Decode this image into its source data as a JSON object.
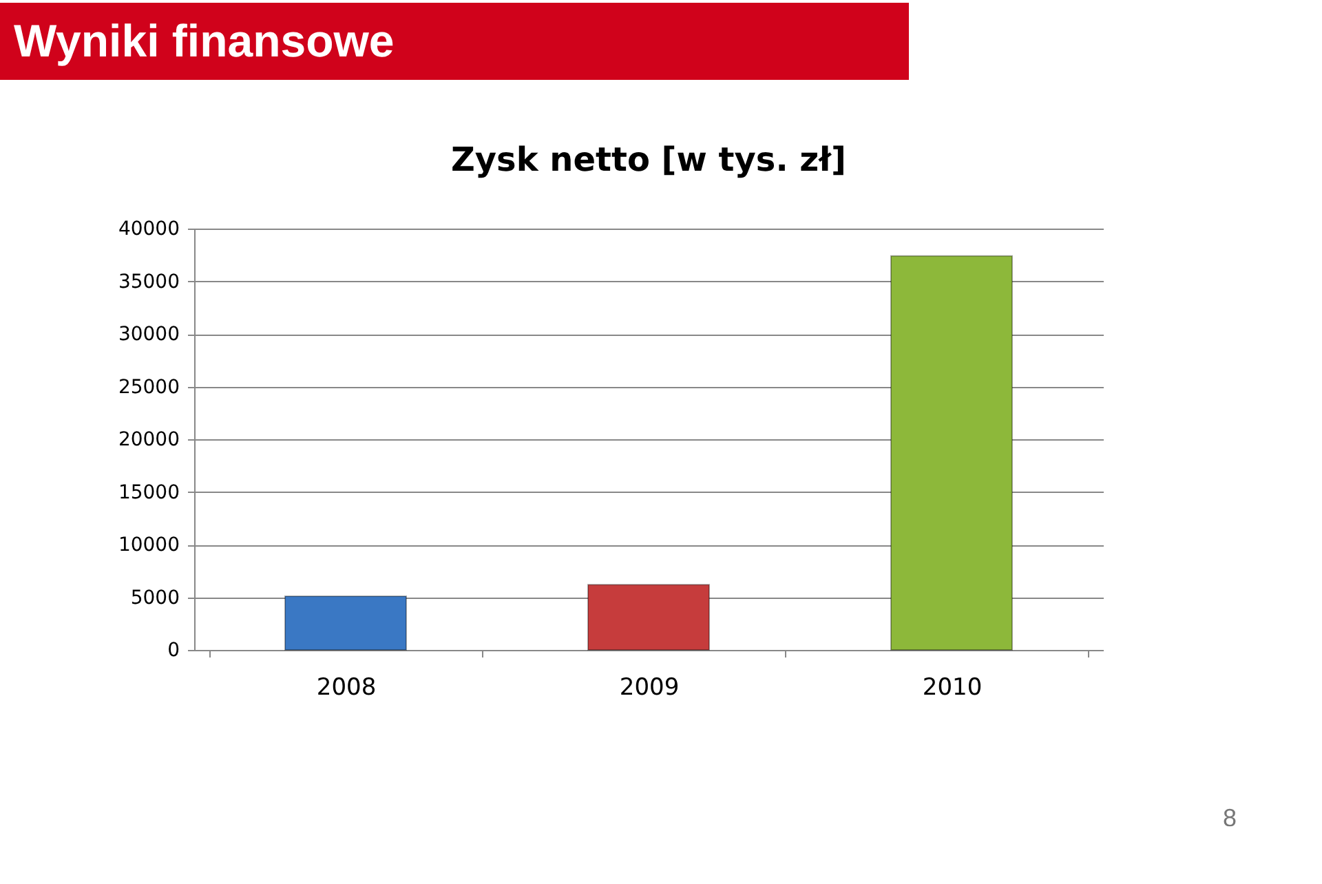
{
  "chart_data": {
    "type": "bar",
    "title": "Wyniki finansowe",
    "subtitle": "Zysk netto [w tys. zł]",
    "categories": [
      "2008",
      "2009",
      "2010"
    ],
    "values": [
      5100,
      6200,
      37400
    ],
    "colors": [
      "#3a78c4",
      "#c63c3c",
      "#8db83a"
    ],
    "ylim": [
      0,
      40000
    ],
    "yticks": [
      0,
      5000,
      10000,
      15000,
      20000,
      25000,
      30000,
      35000,
      40000
    ],
    "grid": "y",
    "annotations": [
      "8"
    ]
  }
}
